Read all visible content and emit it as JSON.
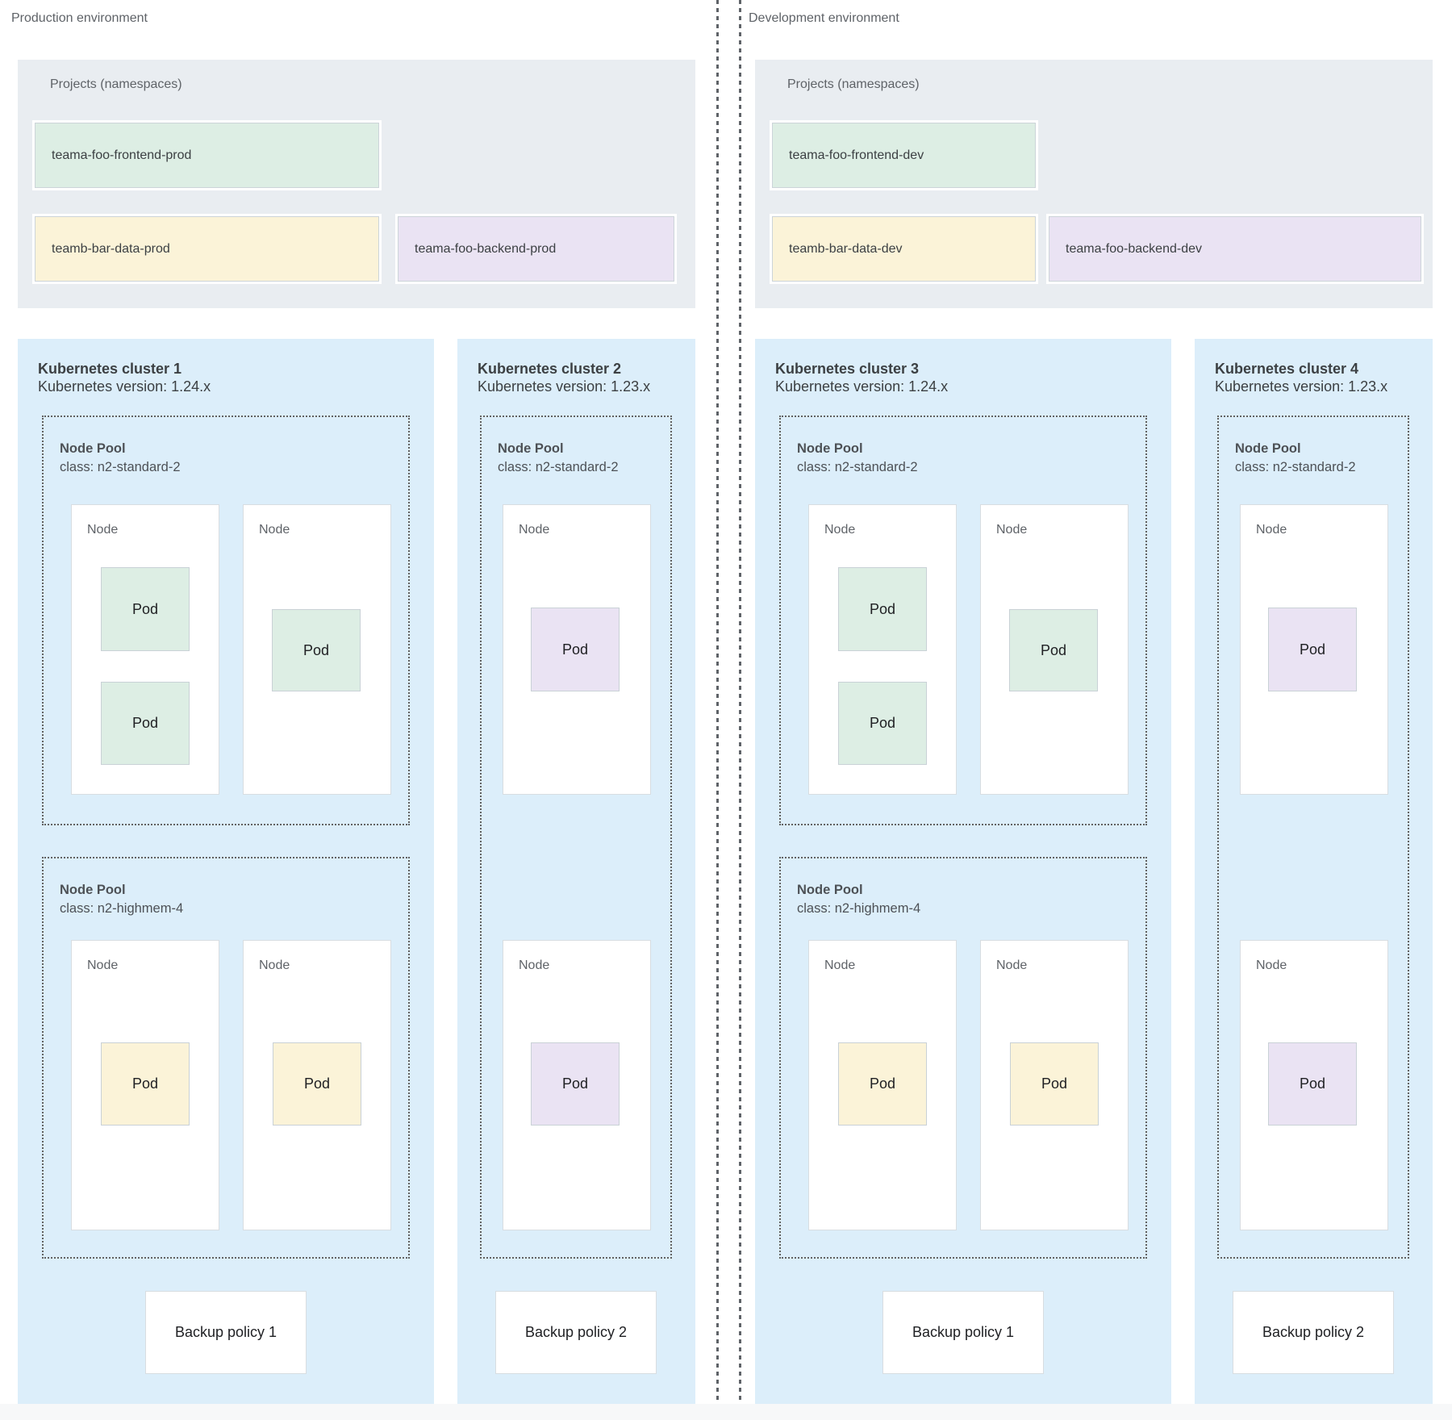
{
  "palette": {
    "frontend_green": "#ddeee4",
    "data_yellow": "#fbf3d8",
    "backend_purple": "#eae3f3",
    "cluster_blue": "#dceefa",
    "projects_gray": "#e9edf1",
    "dashed_line_gray": "#5f6368"
  },
  "environments": [
    {
      "label": "Production environment",
      "projects": {
        "title": "Projects (namespaces)",
        "items": [
          {
            "name": "teama-foo-frontend-prod",
            "color": "#ddeee4"
          },
          {
            "name": "teamb-bar-data-prod",
            "color": "#fbf3d8"
          },
          {
            "name": "teama-foo-backend-prod",
            "color": "#eae3f3"
          }
        ]
      },
      "clusters": [
        {
          "title": "Kubernetes cluster 1",
          "version": "Kubernetes version: 1.24.x",
          "node_pools": [
            {
              "title": "Node Pool",
              "class_line": "class: n2-standard-2",
              "nodes": [
                {
                  "label": "Node",
                  "pods": [
                    {
                      "label": "Pod",
                      "color": "#ddeee4"
                    },
                    {
                      "label": "Pod",
                      "color": "#ddeee4"
                    }
                  ]
                },
                {
                  "label": "Node",
                  "pods": [
                    {
                      "label": "Pod",
                      "color": "#ddeee4"
                    }
                  ]
                }
              ]
            },
            {
              "title": "Node Pool",
              "class_line": "class: n2-highmem-4",
              "nodes": [
                {
                  "label": "Node",
                  "pods": [
                    {
                      "label": "Pod",
                      "color": "#fbf3d8"
                    }
                  ]
                },
                {
                  "label": "Node",
                  "pods": [
                    {
                      "label": "Pod",
                      "color": "#fbf3d8"
                    }
                  ]
                }
              ]
            }
          ],
          "backup_policy": "Backup policy 1"
        },
        {
          "title": "Kubernetes cluster 2",
          "version": "Kubernetes version: 1.23.x",
          "node_pools": [
            {
              "title": "Node Pool",
              "class_line": "class: n2-standard-2",
              "nodes": [
                {
                  "label": "Node",
                  "pods": [
                    {
                      "label": "Pod",
                      "color": "#eae3f3"
                    }
                  ]
                },
                {
                  "label": "Node",
                  "pods": [
                    {
                      "label": "Pod",
                      "color": "#eae3f3"
                    }
                  ]
                }
              ]
            }
          ],
          "backup_policy": "Backup policy 2"
        }
      ]
    },
    {
      "label": "Development environment",
      "projects": {
        "title": "Projects (namespaces)",
        "items": [
          {
            "name": "teama-foo-frontend-dev",
            "color": "#ddeee4"
          },
          {
            "name": "teamb-bar-data-dev",
            "color": "#fbf3d8"
          },
          {
            "name": "teama-foo-backend-dev",
            "color": "#eae3f3"
          }
        ]
      },
      "clusters": [
        {
          "title": "Kubernetes cluster 3",
          "version": "Kubernetes version: 1.24.x",
          "node_pools": [
            {
              "title": "Node Pool",
              "class_line": "class: n2-standard-2",
              "nodes": [
                {
                  "label": "Node",
                  "pods": [
                    {
                      "label": "Pod",
                      "color": "#ddeee4"
                    },
                    {
                      "label": "Pod",
                      "color": "#ddeee4"
                    }
                  ]
                },
                {
                  "label": "Node",
                  "pods": [
                    {
                      "label": "Pod",
                      "color": "#ddeee4"
                    }
                  ]
                }
              ]
            },
            {
              "title": "Node Pool",
              "class_line": "class: n2-highmem-4",
              "nodes": [
                {
                  "label": "Node",
                  "pods": [
                    {
                      "label": "Pod",
                      "color": "#fbf3d8"
                    }
                  ]
                },
                {
                  "label": "Node",
                  "pods": [
                    {
                      "label": "Pod",
                      "color": "#fbf3d8"
                    }
                  ]
                }
              ]
            }
          ],
          "backup_policy": "Backup policy 1"
        },
        {
          "title": "Kubernetes cluster 4",
          "version": "Kubernetes version: 1.23.x",
          "node_pools": [
            {
              "title": "Node Pool",
              "class_line": "class: n2-standard-2",
              "nodes": [
                {
                  "label": "Node",
                  "pods": [
                    {
                      "label": "Pod",
                      "color": "#eae3f3"
                    }
                  ]
                },
                {
                  "label": "Node",
                  "pods": [
                    {
                      "label": "Pod",
                      "color": "#eae3f3"
                    }
                  ]
                }
              ]
            }
          ],
          "backup_policy": "Backup policy 2"
        }
      ]
    }
  ]
}
